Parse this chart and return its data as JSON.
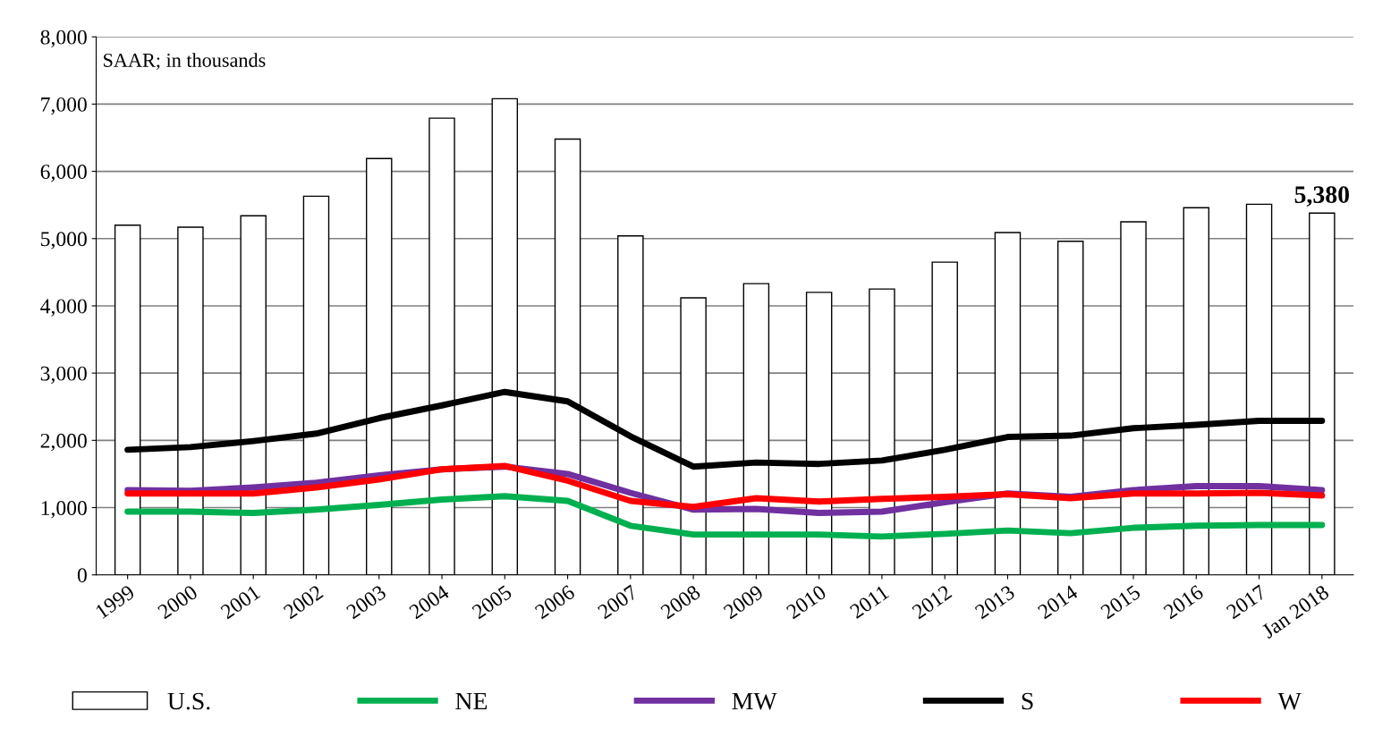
{
  "chart_data": {
    "type": "bar",
    "categories": [
      "1999",
      "2000",
      "2001",
      "2002",
      "2003",
      "2004",
      "2005",
      "2006",
      "2007",
      "2008",
      "2009",
      "2010",
      "2011",
      "2012",
      "2013",
      "2014",
      "2015",
      "2016",
      "2017",
      "Jan 2018"
    ],
    "series": [
      {
        "name": "U.S.",
        "color": "#ffffff",
        "values": [
          5200,
          5170,
          5340,
          5630,
          6190,
          6790,
          7080,
          6480,
          5040,
          4120,
          4330,
          4200,
          4250,
          4650,
          5090,
          4960,
          5250,
          5460,
          5510,
          5380
        ],
        "value_labels": [
          null,
          null,
          null,
          null,
          null,
          null,
          null,
          null,
          null,
          null,
          null,
          null,
          null,
          null,
          null,
          null,
          null,
          null,
          null,
          "5,380"
        ]
      },
      {
        "name": "NE",
        "type": "line",
        "color": "#00b050",
        "values": [
          940,
          940,
          920,
          970,
          1040,
          1120,
          1170,
          1100,
          730,
          600,
          600,
          600,
          570,
          610,
          660,
          620,
          700,
          730,
          740,
          740
        ]
      },
      {
        "name": "MW",
        "type": "line",
        "color": "#7030a0",
        "values": [
          1260,
          1250,
          1300,
          1370,
          1480,
          1570,
          1610,
          1500,
          1220,
          970,
          980,
          920,
          940,
          1080,
          1210,
          1160,
          1260,
          1320,
          1320,
          1260
        ]
      },
      {
        "name": "S",
        "type": "line",
        "color": "#000000",
        "values": [
          1860,
          1900,
          1990,
          2100,
          2330,
          2520,
          2720,
          2580,
          2060,
          1610,
          1670,
          1650,
          1700,
          1860,
          2050,
          2070,
          2180,
          2230,
          2290,
          2290
        ]
      },
      {
        "name": "W",
        "type": "line",
        "color": "#ff0000",
        "values": [
          1210,
          1210,
          1210,
          1300,
          1420,
          1570,
          1620,
          1400,
          1100,
          1010,
          1140,
          1090,
          1130,
          1160,
          1200,
          1140,
          1210,
          1210,
          1220,
          1180
        ]
      }
    ],
    "ylim": [
      0,
      8000
    ],
    "yticks": [
      {
        "value": 0,
        "label": "0"
      },
      {
        "value": 1000,
        "label": "1,000"
      },
      {
        "value": 2000,
        "label": "2,000"
      },
      {
        "value": 3000,
        "label": "3,000"
      },
      {
        "value": 4000,
        "label": "4,000"
      },
      {
        "value": 5000,
        "label": "5,000"
      },
      {
        "value": 6000,
        "label": "6,000"
      },
      {
        "value": 7000,
        "label": "7,000"
      },
      {
        "value": 8000,
        "label": "8,000"
      }
    ],
    "annotations": [
      "SAAR; in thousands"
    ],
    "grid": "y",
    "legend": "bottom",
    "marker": "none",
    "line_style": "solid"
  }
}
